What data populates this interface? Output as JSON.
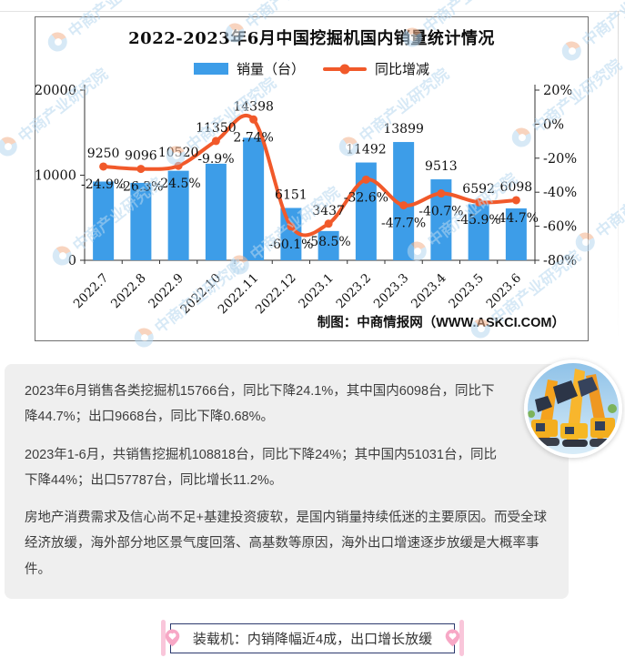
{
  "chart": {
    "title": "2022-2023年6月中国挖掘机国内销量统计情况",
    "legend": [
      {
        "label": "销量（台）",
        "type": "bar"
      },
      {
        "label": "同比增减",
        "type": "line"
      }
    ],
    "attribution": "制图：中商情报网（WWW.ASKCI.COM）",
    "watermark_text": "中商产业研究院"
  },
  "chart_data": {
    "type": "bar",
    "combo": "bar+line",
    "title": "2022-2023年6月中国挖掘机国内销量统计情况",
    "categories": [
      "2022.7",
      "2022.8",
      "2022.9",
      "2022.10",
      "2022.11",
      "2022.12",
      "2023.1",
      "2023.2",
      "2023.3",
      "2023.4",
      "2023.5",
      "2023.6"
    ],
    "series": [
      {
        "name": "销量（台）",
        "type": "bar",
        "axis": "left",
        "values": [
          9250,
          9096,
          10520,
          11350,
          14398,
          6151,
          3437,
          11492,
          13899,
          9513,
          6592,
          6098
        ]
      },
      {
        "name": "同比增减",
        "type": "line",
        "axis": "right",
        "values": [
          -24.9,
          -26.3,
          -24.5,
          -9.9,
          2.74,
          -60.1,
          -58.5,
          -32.6,
          -47.7,
          -40.7,
          -45.9,
          -44.7
        ],
        "labels": [
          "-24.9%",
          "-26.3%",
          "-24.5%",
          "-9.9%",
          "2.74%",
          "-60.1%",
          "-58.5%",
          "-32.6%",
          "-47.7%",
          "-40.7%",
          "-45.9%",
          "-44.7%"
        ]
      }
    ],
    "left_axis": {
      "tick_values": [
        0,
        10000,
        20000
      ],
      "tick_labels": [
        "0",
        "10000",
        "20000"
      ],
      "min": 0,
      "max": 20000
    },
    "right_axis": {
      "tick_values": [
        20,
        0,
        -20,
        -40,
        -60,
        -80
      ],
      "tick_labels": [
        "20%",
        "0%",
        "-20%",
        "-40%",
        "-60%",
        "-80%"
      ],
      "min": -80,
      "max": 20
    },
    "legend_position": "top",
    "grid": false,
    "xlabel": "",
    "ylabel": ""
  },
  "panel": {
    "paragraphs": [
      "2023年6月销售各类挖掘机15766台，同比下降24.1%，其中国内6098台，同比下降44.7%；出口9668台，同比下降0.68%。",
      "2023年1-6月，共销售挖掘机108818台，同比下降24%；其中国内51031台，同比下降44%；出口57787台，同比增长11.2%。",
      "房地产消费需求及信心尚不足+基建投资疲软，是国内销量持续低迷的主要原因。而受全球经济放缓，海外部分地区景气度回落、高基数等原因，海外出口增速逐步放缓是大概率事件。"
    ]
  },
  "badge": {
    "label": "装载机：内销降幅近4成，出口增长放缓"
  },
  "colors": {
    "bar": "#3D9DE8",
    "line": "#F1592A",
    "watermark": "#B8D8F0",
    "panel_bg": "#EFEFEF",
    "badge_border": "#2D3A6E",
    "badge_pink": "#F7A8C6"
  }
}
